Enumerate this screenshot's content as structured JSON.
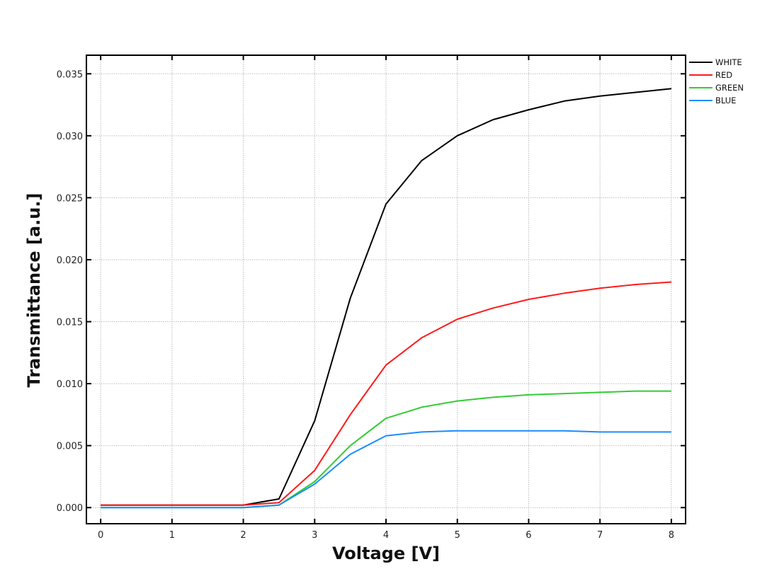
{
  "chart_data": {
    "type": "line",
    "title": "",
    "xlabel": "Voltage [V]",
    "ylabel": "Transmittance [a.u.]",
    "xlim": [
      -0.2,
      8.2
    ],
    "ylim": [
      -0.0013,
      0.0365
    ],
    "grid": true,
    "legend_position": "outside-top-right",
    "x_ticks": [
      0,
      1,
      2,
      3,
      4,
      5,
      6,
      7,
      8
    ],
    "x_tick_labels": [
      "0",
      "1",
      "2",
      "3",
      "4",
      "5",
      "6",
      "7",
      "8"
    ],
    "y_ticks": [
      0.0,
      0.005,
      0.01,
      0.015,
      0.02,
      0.025,
      0.03,
      0.035
    ],
    "y_tick_labels": [
      "0.000",
      "0.005",
      "0.010",
      "0.015",
      "0.020",
      "0.025",
      "0.030",
      "0.035"
    ],
    "x": [
      0,
      0.5,
      1,
      1.5,
      2,
      2.5,
      3,
      3.5,
      4,
      4.5,
      5,
      5.5,
      6,
      6.5,
      7,
      7.5,
      8
    ],
    "series": [
      {
        "name": "WHITE",
        "color": "#000000",
        "values": [
          0.0002,
          0.0002,
          0.0002,
          0.0002,
          0.0002,
          0.0007,
          0.007,
          0.0169,
          0.0245,
          0.028,
          0.03,
          0.0313,
          0.0321,
          0.0328,
          0.0332,
          0.0335,
          0.0338
        ]
      },
      {
        "name": "RED",
        "color": "#ff1a1a",
        "values": [
          0.0002,
          0.0002,
          0.0002,
          0.0002,
          0.0002,
          0.0004,
          0.003,
          0.0075,
          0.0115,
          0.0137,
          0.0152,
          0.0161,
          0.0168,
          0.0173,
          0.0177,
          0.018,
          0.0182
        ]
      },
      {
        "name": "GREEN",
        "color": "#33cc33",
        "values": [
          0.0,
          0.0,
          0.0,
          0.0,
          0.0,
          0.0002,
          0.0021,
          0.005,
          0.0072,
          0.0081,
          0.0086,
          0.0089,
          0.0091,
          0.0092,
          0.0093,
          0.0094,
          0.0094
        ]
      },
      {
        "name": "BLUE",
        "color": "#1a8cff",
        "values": [
          0.0,
          0.0,
          0.0,
          0.0,
          0.0,
          0.0002,
          0.0019,
          0.0043,
          0.0058,
          0.0061,
          0.0062,
          0.0062,
          0.0062,
          0.0062,
          0.0061,
          0.0061,
          0.0061
        ]
      }
    ]
  }
}
